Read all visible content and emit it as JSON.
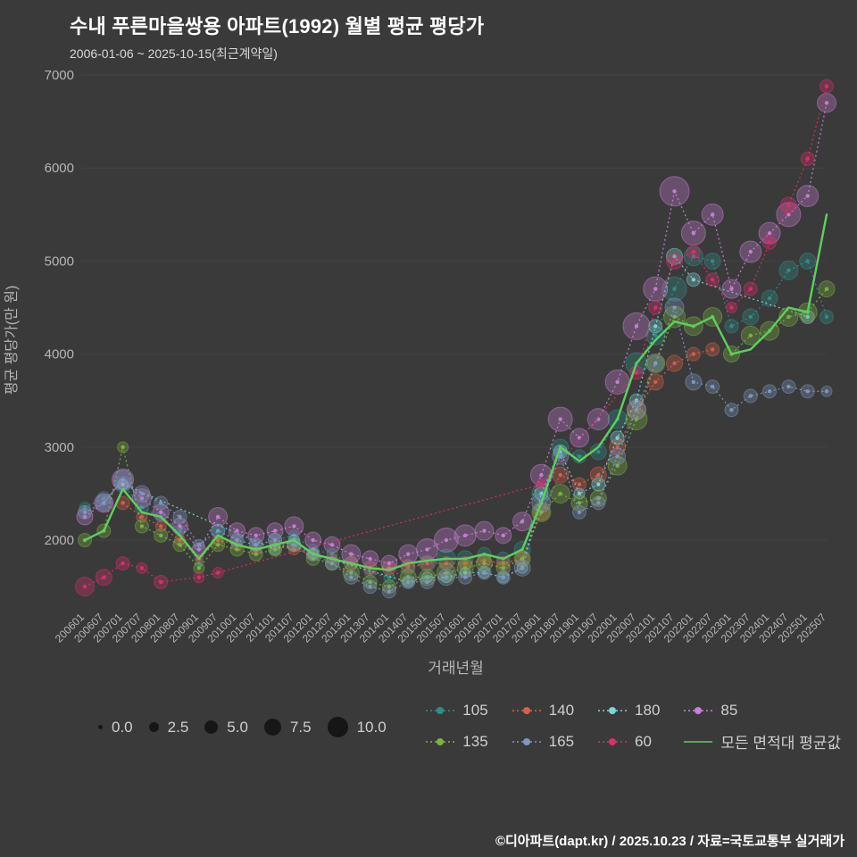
{
  "header": {
    "title": "수내 푸른마을쌍용 아파트(1992) 월별 평균 평당가",
    "subtitle": "2006-01-06 ~ 2025-10-15(최근계약일)"
  },
  "footer": {
    "credit": "©디아파트(dapt.kr) / 2025.10.23 / 자료=국토교통부 실거래가"
  },
  "colors": {
    "background": "#3a3a3a",
    "title": "#ffffff",
    "axis_text": "#b5b5b5",
    "gridline": "rgba(255,255,255,0.05)"
  },
  "chart_data": {
    "type": "scatter",
    "title": "수내 푸른마을쌍용 아파트(1992) 월별 평균 평당가",
    "xlabel": "거래년월",
    "ylabel": "평균 평당가(만 원)",
    "ylim": [
      1300,
      7000
    ],
    "yticks": [
      2000,
      3000,
      4000,
      5000,
      6000,
      7000
    ],
    "x": [
      "200601",
      "200607",
      "200701",
      "200707",
      "200801",
      "200807",
      "200901",
      "200907",
      "201001",
      "201007",
      "201101",
      "201107",
      "201201",
      "201207",
      "201301",
      "201307",
      "201401",
      "201407",
      "201501",
      "201507",
      "201601",
      "201607",
      "201701",
      "201707",
      "201801",
      "201807",
      "201901",
      "201907",
      "202001",
      "202007",
      "202101",
      "202107",
      "202201",
      "202207",
      "202301",
      "202307",
      "202401",
      "202407",
      "202501",
      "202507"
    ],
    "size_legend": [
      "0.0",
      "2.5",
      "5.0",
      "7.5",
      "10.0"
    ],
    "legend_order": [
      "105",
      "135",
      "140",
      "165",
      "180",
      "60",
      "85",
      "모든 면적대 평균값"
    ],
    "series": [
      {
        "name": "105",
        "color": "#2f8f8a",
        "values": [
          2350,
          2450,
          2600,
          2350,
          2250,
          2100,
          1750,
          2100,
          2000,
          1950,
          2000,
          2050,
          1900,
          1850,
          1750,
          1650,
          1600,
          1700,
          1750,
          1800,
          1800,
          1850,
          1800,
          1900,
          2500,
          3000,
          2900,
          2950,
          3300,
          3900,
          4200,
          4700,
          5050,
          5000,
          4300,
          4400,
          4600,
          4900,
          5000,
          4400
        ],
        "sizes": [
          2,
          3,
          4,
          3,
          2,
          2,
          1,
          3,
          2,
          2,
          3,
          2,
          2,
          2,
          3,
          2,
          2,
          3,
          4,
          5,
          4,
          3,
          3,
          4,
          5,
          4,
          3,
          4,
          5,
          6,
          5,
          7,
          5,
          4,
          3,
          4,
          4,
          5,
          4,
          3
        ]
      },
      {
        "name": "140",
        "color": "#d95f4c",
        "values": [
          null,
          null,
          2400,
          2250,
          2150,
          2000,
          1800,
          2000,
          1950,
          1900,
          1950,
          1900,
          1850,
          1800,
          1750,
          1700,
          1700,
          1720,
          1750,
          1750,
          1750,
          1780,
          1750,
          1800,
          2300,
          2700,
          2600,
          2700,
          3000,
          3400,
          3700,
          3900,
          4000,
          4050,
          null,
          null,
          null,
          null,
          null,
          null
        ],
        "sizes": [
          0,
          0,
          3,
          2,
          2,
          2,
          1,
          2,
          2,
          2,
          2,
          2,
          2,
          2,
          3,
          3,
          3,
          3,
          3,
          3,
          3,
          3,
          3,
          3,
          4,
          4,
          3,
          4,
          4,
          5,
          4,
          4,
          3,
          3,
          0,
          0,
          0,
          0,
          0,
          0
        ]
      },
      {
        "name": "180",
        "color": "#7fd4d4",
        "values": [
          null,
          null,
          2600,
          null,
          null,
          null,
          null,
          null,
          null,
          null,
          1900,
          2000,
          1850,
          null,
          null,
          null,
          null,
          1550,
          1600,
          1600,
          1650,
          1650,
          1600,
          1700,
          2500,
          2950,
          2500,
          2600,
          3100,
          3500,
          4300,
          5050,
          4800,
          null,
          null,
          null,
          null,
          null,
          4400,
          null
        ],
        "sizes": [
          0,
          0,
          2,
          0,
          0,
          0,
          0,
          0,
          0,
          0,
          2,
          2,
          2,
          0,
          0,
          0,
          0,
          2,
          2,
          2,
          2,
          2,
          2,
          2,
          3,
          3,
          2,
          3,
          3,
          3,
          3,
          4,
          3,
          0,
          0,
          0,
          0,
          0,
          3,
          0
        ]
      },
      {
        "name": "85",
        "color": "#c97fd6",
        "values": [
          2250,
          2400,
          2650,
          2450,
          2300,
          2150,
          1900,
          2250,
          2100,
          2050,
          2100,
          2150,
          2000,
          1950,
          1850,
          1800,
          1750,
          1850,
          1900,
          2000,
          2050,
          2100,
          2050,
          2200,
          2700,
          3300,
          3100,
          3300,
          3700,
          4300,
          4700,
          5750,
          5300,
          5500,
          4700,
          5100,
          5300,
          5500,
          5700,
          6700
        ],
        "sizes": [
          4,
          5,
          6,
          5,
          4,
          4,
          3,
          5,
          4,
          4,
          4,
          5,
          4,
          4,
          5,
          4,
          4,
          5,
          6,
          7,
          6,
          5,
          4,
          5,
          6,
          7,
          5,
          6,
          7,
          8,
          7,
          9,
          7,
          6,
          5,
          6,
          6,
          7,
          6,
          5
        ]
      },
      {
        "name": "135",
        "color": "#7cb342",
        "values": [
          2000,
          2100,
          3000,
          2150,
          2050,
          1950,
          1700,
          1950,
          1900,
          1850,
          1900,
          1950,
          1800,
          1750,
          1650,
          1550,
          1500,
          1600,
          1600,
          1650,
          1700,
          1750,
          1700,
          1800,
          2300,
          2500,
          2400,
          2450,
          2800,
          3300,
          3900,
          4400,
          4300,
          4400,
          4000,
          4200,
          4250,
          4400,
          4450,
          4700
        ],
        "sizes": [
          3,
          3,
          2,
          3,
          3,
          3,
          2,
          3,
          3,
          3,
          3,
          3,
          3,
          3,
          4,
          3,
          3,
          4,
          4,
          5,
          4,
          4,
          3,
          4,
          5,
          5,
          4,
          4,
          5,
          6,
          5,
          6,
          5,
          5,
          4,
          5,
          5,
          5,
          5,
          4
        ]
      },
      {
        "name": "165",
        "color": "#7e99c0",
        "values": [
          2300,
          2400,
          2650,
          2500,
          2400,
          2250,
          1950,
          2100,
          2000,
          1950,
          2000,
          1950,
          1850,
          1750,
          1600,
          1500,
          1450,
          1550,
          1550,
          1600,
          1600,
          1650,
          1600,
          1700,
          2400,
          2900,
          2300,
          2400,
          2900,
          3400,
          3900,
          4500,
          3700,
          3650,
          3400,
          3550,
          3600,
          3650,
          3600,
          3600
        ],
        "sizes": [
          3,
          4,
          5,
          4,
          3,
          3,
          2,
          3,
          3,
          3,
          3,
          3,
          3,
          3,
          3,
          3,
          3,
          3,
          3,
          4,
          3,
          3,
          3,
          4,
          5,
          4,
          3,
          3,
          4,
          5,
          4,
          5,
          4,
          3,
          3,
          3,
          3,
          3,
          3,
          2
        ]
      },
      {
        "name": "60",
        "color": "#dc2e6e",
        "values": [
          1500,
          1600,
          1750,
          1700,
          1550,
          null,
          1600,
          1650,
          null,
          null,
          null,
          null,
          null,
          null,
          null,
          null,
          null,
          null,
          null,
          null,
          null,
          null,
          null,
          null,
          2600,
          null,
          null,
          null,
          null,
          3800,
          4500,
          5000,
          5100,
          4800,
          4500,
          4700,
          5200,
          5600,
          6100,
          6880
        ],
        "sizes": [
          5,
          4,
          3,
          2,
          3,
          0,
          2,
          2,
          0,
          0,
          0,
          0,
          0,
          0,
          0,
          0,
          0,
          0,
          0,
          0,
          0,
          0,
          0,
          0,
          2,
          0,
          0,
          0,
          0,
          3,
          3,
          4,
          3,
          3,
          2,
          3,
          3,
          4,
          3,
          3
        ]
      }
    ],
    "average_line": {
      "name": "모든 면적대 평균값",
      "color": "#5dd05d",
      "values": [
        2000,
        2100,
        2550,
        2300,
        2250,
        2050,
        1800,
        2050,
        1950,
        1900,
        1950,
        2000,
        1850,
        1800,
        1750,
        1700,
        1680,
        1750,
        1780,
        1800,
        1800,
        1850,
        1800,
        1900,
        2400,
        3000,
        2850,
        3000,
        3300,
        3900,
        4150,
        4350,
        4300,
        4400,
        4000,
        4050,
        4250,
        4500,
        4450,
        5500
      ]
    }
  }
}
